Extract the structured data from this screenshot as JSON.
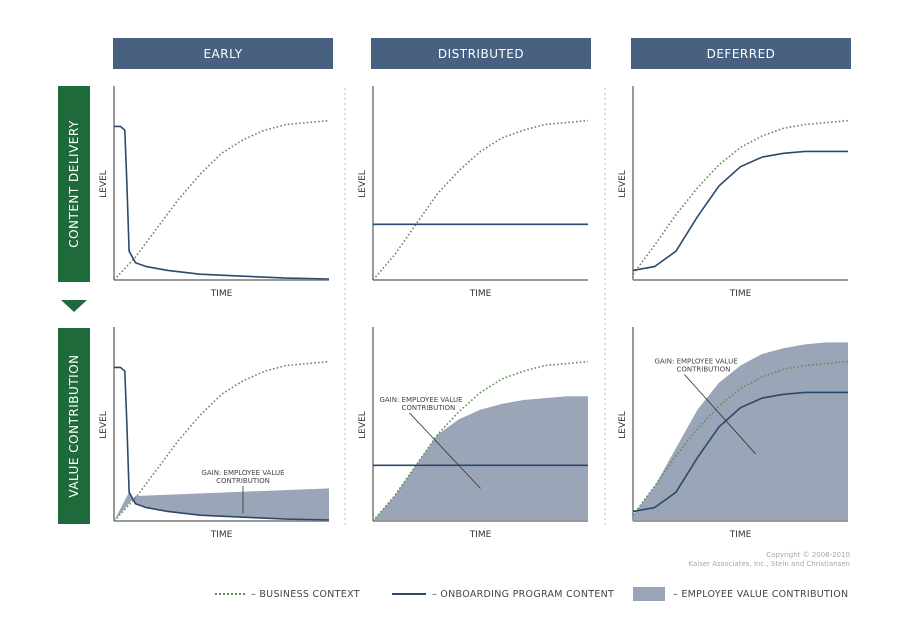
{
  "columns": [
    "EARLY",
    "DISTRIBUTED",
    "DEFERRED"
  ],
  "rows": [
    "CONTENT DELIVERY",
    "VALUE CONTRIBUTION"
  ],
  "colors": {
    "header": "#486180",
    "row_label": "#1f6a3a",
    "business_context": "#5f8f58",
    "onboarding": "#2b4a6b",
    "value_area": "#9aa5b8",
    "axis": "#999999"
  },
  "copyright": [
    "Copyright © 2006-2010",
    "Kaiser Associates, Inc., Stein and Christiansen"
  ],
  "legend": {
    "business_context": "– BUSINESS CONTEXT",
    "onboarding": "– ONBOARDING PROGRAM CONTENT",
    "value": "– EMPLOYEE VALUE CONTRIBUTION"
  },
  "chart_data": [
    {
      "type": "line",
      "id": "early-content",
      "xlabel": "TIME",
      "ylabel": "LEVEL",
      "xlim": [
        0,
        100
      ],
      "ylim": [
        0,
        100
      ],
      "grid": false,
      "series": [
        {
          "key": "business",
          "style": "dotted",
          "x": [
            0,
            5,
            10,
            20,
            30,
            40,
            50,
            60,
            70,
            80,
            90,
            100
          ],
          "y": [
            0,
            6,
            12,
            27,
            42,
            55,
            66,
            73,
            78,
            81,
            82,
            83
          ]
        },
        {
          "key": "onboarding",
          "style": "solid",
          "x": [
            0,
            3,
            5,
            6,
            7,
            10,
            15,
            25,
            40,
            60,
            80,
            100
          ],
          "y": [
            80,
            80,
            78,
            50,
            15,
            9,
            7,
            5,
            3,
            2,
            1,
            0.5
          ]
        }
      ]
    },
    {
      "type": "line",
      "id": "distributed-content",
      "xlabel": "TIME",
      "ylabel": "LEVEL",
      "xlim": [
        0,
        100
      ],
      "ylim": [
        0,
        100
      ],
      "grid": false,
      "series": [
        {
          "key": "business",
          "style": "dotted",
          "x": [
            0,
            10,
            20,
            30,
            40,
            50,
            60,
            70,
            80,
            90,
            100
          ],
          "y": [
            0,
            13,
            29,
            45,
            57,
            67,
            74,
            78,
            81,
            82,
            83
          ]
        },
        {
          "key": "onboarding",
          "style": "solid",
          "x": [
            0,
            100
          ],
          "y": [
            29,
            29
          ]
        }
      ]
    },
    {
      "type": "line",
      "id": "deferred-content",
      "xlabel": "TIME",
      "ylabel": "LEVEL",
      "xlim": [
        0,
        100
      ],
      "ylim": [
        0,
        100
      ],
      "grid": false,
      "series": [
        {
          "key": "business",
          "style": "dotted",
          "x": [
            0,
            10,
            20,
            30,
            40,
            50,
            60,
            70,
            80,
            90,
            100
          ],
          "y": [
            3,
            18,
            34,
            48,
            60,
            69,
            75,
            79,
            81,
            82,
            83
          ]
        },
        {
          "key": "onboarding",
          "style": "solid",
          "x": [
            0,
            10,
            20,
            30,
            40,
            50,
            60,
            70,
            80,
            90,
            100
          ],
          "y": [
            5,
            7,
            15,
            33,
            49,
            59,
            64,
            66,
            67,
            67,
            67
          ]
        }
      ]
    },
    {
      "type": "area",
      "id": "early-value",
      "xlabel": "TIME",
      "ylabel": "LEVEL",
      "xlim": [
        0,
        100
      ],
      "ylim": [
        0,
        100
      ],
      "grid": false,
      "annotation": {
        "lines": [
          "GAIN: EMPLOYEE VALUE",
          "CONTRIBUTION"
        ],
        "x": 60,
        "y": 24,
        "pointer_to": [
          60,
          4
        ]
      },
      "area": {
        "x": [
          0,
          10,
          100
        ],
        "y": [
          0,
          13,
          17
        ],
        "base": {
          "x": [
            0,
            7,
            10,
            15,
            25,
            40,
            60,
            80,
            100
          ],
          "y": [
            0,
            15,
            9,
            7,
            5,
            3,
            2,
            1,
            0.5
          ]
        }
      },
      "series": [
        {
          "key": "business",
          "style": "dotted",
          "x": [
            0,
            5,
            10,
            20,
            30,
            40,
            50,
            60,
            70,
            80,
            90,
            100
          ],
          "y": [
            0,
            6,
            12,
            27,
            42,
            55,
            66,
            73,
            78,
            81,
            82,
            83
          ]
        },
        {
          "key": "onboarding",
          "style": "solid",
          "x": [
            0,
            3,
            5,
            6,
            7,
            10,
            15,
            25,
            40,
            60,
            80,
            100
          ],
          "y": [
            80,
            80,
            78,
            50,
            15,
            9,
            7,
            5,
            3,
            2,
            1,
            0.5
          ]
        }
      ]
    },
    {
      "type": "area",
      "id": "distributed-value",
      "xlabel": "TIME",
      "ylabel": "LEVEL",
      "xlim": [
        0,
        100
      ],
      "ylim": [
        0,
        100
      ],
      "grid": false,
      "annotation": {
        "lines": [
          "GAIN: EMPLOYEE VALUE",
          "CONTRIBUTION"
        ],
        "x": 3,
        "y": 62,
        "pointer_to": [
          50,
          17
        ]
      },
      "area": {
        "x": [
          0,
          10,
          20,
          30,
          40,
          50,
          60,
          70,
          80,
          90,
          100
        ],
        "y": [
          0,
          13,
          29,
          45,
          53,
          58,
          61,
          63,
          64,
          65,
          65
        ]
      },
      "series": [
        {
          "key": "business",
          "style": "dotted",
          "x": [
            0,
            10,
            20,
            30,
            40,
            50,
            60,
            70,
            80,
            90,
            100
          ],
          "y": [
            0,
            13,
            29,
            45,
            57,
            67,
            74,
            78,
            81,
            82,
            83
          ]
        },
        {
          "key": "onboarding",
          "style": "solid",
          "x": [
            0,
            100
          ],
          "y": [
            29,
            29
          ]
        }
      ]
    },
    {
      "type": "area",
      "id": "deferred-value",
      "xlabel": "TIME",
      "ylabel": "LEVEL",
      "xlim": [
        0,
        100
      ],
      "ylim": [
        0,
        100
      ],
      "grid": false,
      "annotation": {
        "lines": [
          "GAIN: EMPLOYEE VALUE",
          "CONTRIBUTION"
        ],
        "x": 10,
        "y": 82,
        "pointer_to": [
          57,
          35
        ]
      },
      "area": {
        "x": [
          0,
          10,
          20,
          30,
          40,
          50,
          60,
          70,
          80,
          90,
          100
        ],
        "y": [
          3,
          18,
          38,
          58,
          72,
          81,
          87,
          90,
          92,
          93,
          93
        ]
      },
      "series": [
        {
          "key": "business",
          "style": "dotted",
          "x": [
            0,
            10,
            20,
            30,
            40,
            50,
            60,
            70,
            80,
            90,
            100
          ],
          "y": [
            3,
            18,
            34,
            48,
            60,
            69,
            75,
            79,
            81,
            82,
            83
          ]
        },
        {
          "key": "onboarding",
          "style": "solid",
          "x": [
            0,
            10,
            20,
            30,
            40,
            50,
            60,
            70,
            80,
            90,
            100
          ],
          "y": [
            5,
            7,
            15,
            33,
            49,
            59,
            64,
            66,
            67,
            67,
            67
          ]
        }
      ]
    }
  ]
}
